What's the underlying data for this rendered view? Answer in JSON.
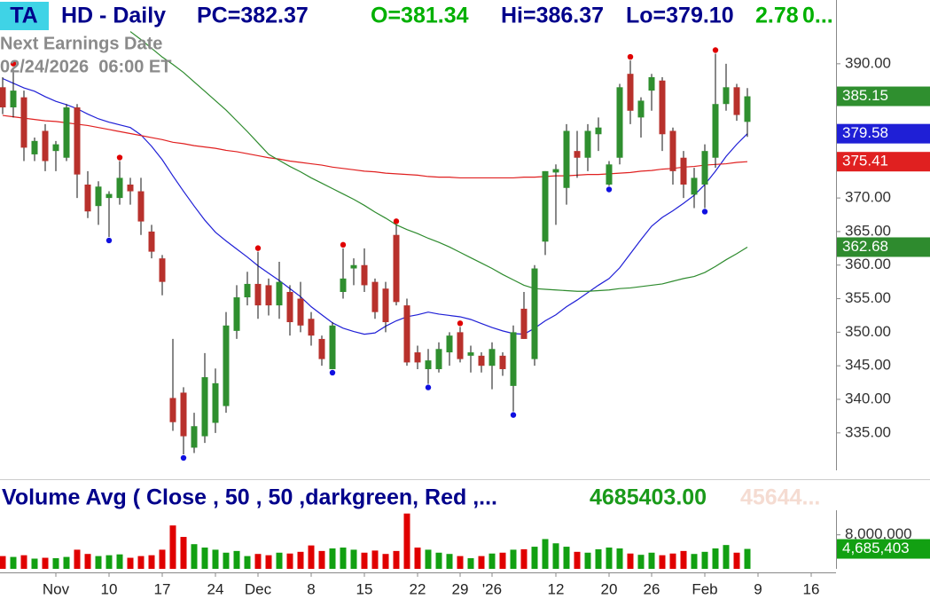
{
  "chart_data": {
    "type": "candlestick",
    "badge": "TA",
    "title": "HD - Daily",
    "stats": [
      {
        "text": "PC=382.37",
        "color": "#00008b"
      },
      {
        "text": "O=381.34",
        "color": "#00b000"
      },
      {
        "text": "Hi=386.37",
        "color": "#00008b"
      },
      {
        "text": "Lo=379.10",
        "color": "#00008b"
      },
      {
        "text": "2.78",
        "color": "#00b000"
      },
      {
        "text": "0...",
        "color": "#00b000"
      }
    ],
    "annotations": [
      "Next Earnings Date",
      "02/24/2026  06:00 ET"
    ],
    "categories": [
      null,
      null,
      null,
      null,
      null,
      "Nov",
      null,
      null,
      null,
      null,
      "10",
      null,
      null,
      null,
      null,
      "17",
      null,
      null,
      null,
      null,
      "24",
      null,
      null,
      null,
      "Dec",
      null,
      null,
      null,
      null,
      "8",
      null,
      null,
      null,
      null,
      "15",
      null,
      null,
      null,
      null,
      "22",
      null,
      null,
      null,
      "29",
      null,
      null,
      "'26",
      null,
      null,
      null,
      null,
      null,
      "12",
      null,
      null,
      null,
      null,
      "20",
      null,
      null,
      null,
      "26",
      null,
      null,
      null,
      null,
      "Feb",
      null,
      null,
      null,
      null,
      "9",
      null,
      null,
      null,
      null,
      "16"
    ],
    "open": [
      386.5,
      383.5,
      385,
      376.5,
      380,
      377,
      376,
      383.5,
      372,
      368.8,
      370,
      370,
      372,
      371,
      365,
      361,
      340.2,
      341,
      332.8,
      334.5,
      336.5,
      339,
      350.2,
      355.2,
      357.2,
      357,
      354,
      356,
      355,
      352,
      349,
      344.5,
      356,
      359.5,
      360,
      357.5,
      356.5,
      364.5,
      354,
      347,
      344.5,
      344.5,
      347,
      350,
      346.5,
      346.5,
      345,
      346.5,
      342,
      353.5,
      346,
      363.5,
      373.8,
      371.5,
      377,
      376,
      379.5,
      372,
      376,
      388.5,
      382,
      386,
      387.5,
      380,
      376,
      370.5,
      372,
      376,
      384,
      386.5,
      381.34,
      null,
      null,
      null,
      null,
      null,
      null
    ],
    "high": [
      388,
      389.5,
      386,
      379,
      381,
      378.5,
      384,
      384,
      374,
      372.5,
      371,
      375.5,
      373,
      373,
      366,
      361.5,
      349,
      341.8,
      338,
      346.9,
      344.6,
      353,
      357,
      359,
      362,
      358,
      360.5,
      357,
      357.5,
      353,
      349.5,
      351.5,
      362.5,
      361,
      362.5,
      358,
      357.5,
      366,
      355,
      348,
      347.5,
      348.5,
      350,
      350.8,
      348,
      347,
      348.5,
      347,
      351,
      356,
      360,
      374,
      375,
      381,
      380,
      381,
      382,
      375.5,
      387,
      390.5,
      385,
      388.5,
      388,
      380.5,
      377,
      374.5,
      378,
      391.5,
      390,
      387,
      386.37,
      null,
      null,
      null,
      null,
      null,
      null
    ],
    "low": [
      382.5,
      382,
      375.5,
      375.5,
      374,
      374,
      375.5,
      370,
      367,
      366,
      364.2,
      369,
      369,
      364.5,
      361,
      355.5,
      335.3,
      331.8,
      332,
      333.5,
      335,
      338,
      349,
      354,
      352,
      352.5,
      352,
      349.5,
      350,
      348,
      345,
      344.5,
      355,
      357,
      356,
      352,
      350,
      354,
      345,
      344.5,
      342.3,
      344,
      345,
      345.5,
      344,
      344,
      341.5,
      343.5,
      338.2,
      349,
      345,
      361.5,
      366,
      369,
      373,
      374,
      377,
      371.8,
      375,
      381,
      379,
      383,
      377,
      372,
      370,
      368.5,
      368.5,
      374.5,
      383,
      381.5,
      379.1,
      null,
      null,
      null,
      null,
      null,
      null
    ],
    "close": [
      383.5,
      386,
      377.5,
      378.5,
      375.5,
      378,
      383.5,
      373.5,
      368,
      371.7,
      370.6,
      373,
      371,
      366.5,
      362,
      357.5,
      336.6,
      334.5,
      336,
      343.3,
      342.4,
      351,
      355.2,
      357.2,
      354,
      354,
      357.5,
      351.5,
      351,
      349.5,
      346,
      351,
      358,
      360,
      357,
      353,
      351.5,
      354.5,
      345.5,
      345.5,
      345.8,
      347.5,
      349.5,
      346,
      347,
      345,
      347.5,
      344.5,
      350,
      349,
      359.5,
      374,
      374.3,
      380,
      376,
      380,
      380.5,
      375,
      386.5,
      383,
      384.5,
      388,
      379.5,
      374,
      372,
      373,
      377,
      384,
      386.5,
      382.37,
      385.15,
      null,
      null,
      null,
      null,
      null,
      null
    ],
    "up_color": "#2f8f2f",
    "down_color": "#b8312c",
    "series": [
      {
        "color": "#1f1fd6",
        "values": [
          387.8,
          387.1,
          386.4,
          385.9,
          385.1,
          384.4,
          383.9,
          383.3,
          382.5,
          381.8,
          381.3,
          380.9,
          380.5,
          379.4,
          377.7,
          375.7,
          373.3,
          371,
          368.8,
          366.7,
          364.9,
          363.6,
          362.4,
          361.2,
          359.9,
          358.8,
          357.7,
          356.5,
          355.3,
          353.8,
          352.6,
          351.4,
          350.6,
          350.1,
          349.7,
          349.9,
          350.9,
          351.7,
          352.3,
          352.6,
          353,
          352.7,
          352.5,
          352.3,
          351.9,
          351.3,
          350.7,
          350.2,
          349.8,
          349.7,
          350.6,
          351.7,
          352.6,
          353.8,
          354.8,
          355.9,
          357,
          358,
          359.6,
          361.7,
          363.8,
          365.8,
          367.1,
          368.1,
          369.2,
          370.4,
          372,
          374,
          376.2,
          378,
          379.58,
          null,
          null,
          null,
          null,
          null,
          null
        ]
      },
      {
        "color": "#e02020",
        "values": [
          382.3,
          382.1,
          381.9,
          381.7,
          381.5,
          381.4,
          381.2,
          381,
          380.8,
          380.5,
          380.2,
          379.9,
          379.6,
          379.3,
          379,
          378.7,
          378.3,
          378.1,
          377.8,
          377.6,
          377.4,
          377.1,
          376.9,
          376.6,
          376.3,
          376,
          375.8,
          375.5,
          375.3,
          375.1,
          374.9,
          374.6,
          374.4,
          374.2,
          374,
          373.9,
          373.7,
          373.6,
          373.5,
          373.4,
          373.2,
          373.1,
          373.1,
          373,
          373,
          373,
          373,
          373,
          373,
          373.1,
          373.1,
          373.2,
          373.3,
          373.3,
          373.4,
          373.5,
          373.5,
          373.6,
          373.7,
          373.8,
          374,
          374.1,
          374.3,
          374.4,
          374.6,
          374.7,
          374.9,
          375,
          375.1,
          375.3,
          375.41,
          null,
          null,
          null,
          null,
          null,
          null
        ]
      },
      {
        "color": "#2e8b2e",
        "values": [
          null,
          null,
          null,
          null,
          null,
          null,
          null,
          null,
          null,
          null,
          null,
          null,
          394.8,
          393.6,
          392.3,
          391,
          389.9,
          388.7,
          387.3,
          385.9,
          384.5,
          383.1,
          381.5,
          379.9,
          378.2,
          376.5,
          375.6,
          374.7,
          373.9,
          373,
          372.2,
          371.4,
          370.6,
          369.8,
          368.9,
          367.9,
          367,
          366,
          365.3,
          364.7,
          364,
          363.4,
          362.7,
          361.9,
          361.1,
          360.3,
          359.5,
          358.6,
          357.8,
          357,
          356.5,
          356.4,
          356.3,
          356.2,
          356.1,
          356.1,
          356.2,
          356.3,
          356.5,
          356.6,
          356.8,
          357,
          357.2,
          357.6,
          358,
          358.3,
          358.9,
          359.8,
          360.8,
          361.7,
          362.68,
          null,
          null,
          null,
          null,
          null,
          null
        ]
      }
    ],
    "ylim": [
      328.1,
      399.5
    ],
    "yticks": [
      {
        "value": 335,
        "label": "335.00"
      },
      {
        "value": 340,
        "label": "340.00"
      },
      {
        "value": 345,
        "label": "345.00"
      },
      {
        "value": 350,
        "label": "350.00"
      },
      {
        "value": 355,
        "label": "355.00"
      },
      {
        "value": 360,
        "label": "360.00"
      },
      {
        "value": 365,
        "label": "365.00"
      },
      {
        "value": 370,
        "label": "370.00"
      },
      {
        "value": 375,
        "label": "375.00"
      },
      {
        "value": 380,
        "label": "380.00"
      },
      {
        "value": 385,
        "label": "385.00"
      },
      {
        "value": 390,
        "label": "390.00"
      }
    ],
    "pivot_highs": {
      "color": "#e00000",
      "indices": [
        1,
        11,
        24,
        32,
        37,
        43,
        59,
        67
      ]
    },
    "pivot_lows": {
      "color": "#1010e0",
      "indices": [
        10,
        17,
        31,
        40,
        48,
        57,
        66
      ]
    },
    "volume": {
      "type": "bar",
      "title": "Volume Avg ( Close , 50 , 50 ,darkgreen, Red ,...",
      "stats": [
        {
          "text": "4685403.00",
          "color": "#1a9a1a"
        },
        {
          "text": "45644...",
          "color": "#f5dcd2"
        }
      ],
      "values": [
        3000000,
        2800000,
        3200000,
        2400000,
        2600000,
        2500000,
        2800000,
        4500000,
        3500000,
        3000000,
        3200000,
        3400000,
        2600000,
        3000000,
        3200000,
        4500000,
        10200000,
        7500000,
        5800000,
        5000000,
        4500000,
        3800000,
        4200000,
        3000000,
        3500000,
        3200000,
        3800000,
        3600000,
        4000000,
        5500000,
        4200000,
        4800000,
        5000000,
        4500000,
        3800000,
        4300000,
        3500000,
        4200000,
        13000000,
        5000000,
        4500000,
        3800000,
        3500000,
        3000000,
        2500000,
        3000000,
        3600000,
        3800000,
        4500000,
        4600000,
        5200000,
        7000000,
        6000000,
        5200000,
        4000000,
        3800000,
        4600000,
        5000000,
        4800000,
        3600000,
        3300000,
        3800000,
        3200000,
        3600000,
        4200000,
        3500000,
        4000000,
        4800000,
        5600000,
        3800000,
        4685403,
        null,
        null,
        null,
        null,
        null,
        null
      ],
      "value_labels": [
        null,
        null,
        null,
        null,
        null,
        null,
        null,
        null,
        null,
        null,
        null,
        null,
        null,
        null,
        null,
        null,
        null,
        null,
        null,
        null,
        null,
        null,
        null,
        null,
        null,
        null,
        null,
        null,
        null,
        null,
        null,
        null,
        null,
        null,
        null,
        null,
        null,
        null,
        null,
        null,
        null,
        null,
        null,
        null,
        null,
        null,
        null,
        null,
        null,
        null,
        null,
        null,
        null,
        null,
        null,
        null,
        null,
        null,
        null,
        null,
        null,
        null,
        null,
        null,
        null,
        null,
        null,
        null,
        null,
        null,
        "4,685,403",
        null,
        null,
        null,
        null,
        null,
        null
      ],
      "up_color": "#12a012",
      "down_color": "#e00000",
      "ylim": [
        0,
        19400000
      ],
      "yticks": [
        {
          "value": 8000000,
          "label": "8,000,000"
        }
      ]
    }
  }
}
